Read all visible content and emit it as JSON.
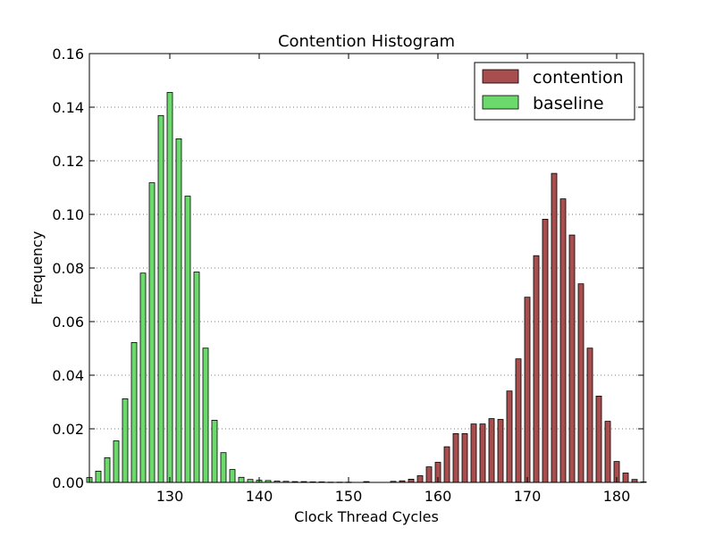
{
  "chart_data": {
    "type": "bar",
    "title": "Contention Histogram",
    "xlabel": "Clock Thread Cycles",
    "ylabel": "Frequency",
    "xlim": [
      121,
      183
    ],
    "ylim": [
      0,
      0.16
    ],
    "xticks": [
      130,
      140,
      150,
      160,
      170,
      180
    ],
    "yticks": [
      0.0,
      0.02,
      0.04,
      0.06,
      0.08,
      0.1,
      0.12,
      0.14,
      0.16
    ],
    "ytick_labels": [
      "0.00",
      "0.02",
      "0.04",
      "0.06",
      "0.08",
      "0.10",
      "0.12",
      "0.14",
      "0.16"
    ],
    "grid": "horizontal dotted",
    "legend_position": "top-right",
    "series": [
      {
        "name": "contention",
        "color": "#a84e4e",
        "x": [
          152,
          155,
          156,
          157,
          158,
          159,
          160,
          161,
          162,
          163,
          164,
          165,
          166,
          167,
          168,
          169,
          170,
          171,
          172,
          173,
          174,
          175,
          176,
          177,
          178,
          179,
          180,
          181,
          182,
          183
        ],
        "values": [
          0.0003,
          0.0004,
          0.0006,
          0.0012,
          0.0025,
          0.0058,
          0.0075,
          0.0133,
          0.0182,
          0.0182,
          0.0218,
          0.0218,
          0.0238,
          0.0235,
          0.0341,
          0.0461,
          0.0691,
          0.0846,
          0.0982,
          0.1153,
          0.1058,
          0.0923,
          0.0741,
          0.0501,
          0.0322,
          0.0228,
          0.0078,
          0.0035,
          0.0011,
          0.0002
        ]
      },
      {
        "name": "baseline",
        "color": "#6bd96b",
        "x": [
          121,
          122,
          123,
          124,
          125,
          126,
          127,
          128,
          129,
          130,
          131,
          132,
          133,
          134,
          135,
          136,
          137,
          138,
          139,
          140,
          141,
          142,
          143,
          144,
          145,
          146,
          147,
          148,
          149,
          150
        ],
        "values": [
          0.0018,
          0.0042,
          0.0092,
          0.0155,
          0.0312,
          0.0522,
          0.0781,
          0.1118,
          0.1369,
          0.1455,
          0.1282,
          0.1068,
          0.0785,
          0.0501,
          0.0232,
          0.0111,
          0.0048,
          0.0019,
          0.0011,
          0.0008,
          0.0007,
          0.0005,
          0.0004,
          0.0003,
          0.0003,
          0.0002,
          0.0002,
          0.0001,
          0.0001,
          0.0001
        ]
      }
    ]
  }
}
